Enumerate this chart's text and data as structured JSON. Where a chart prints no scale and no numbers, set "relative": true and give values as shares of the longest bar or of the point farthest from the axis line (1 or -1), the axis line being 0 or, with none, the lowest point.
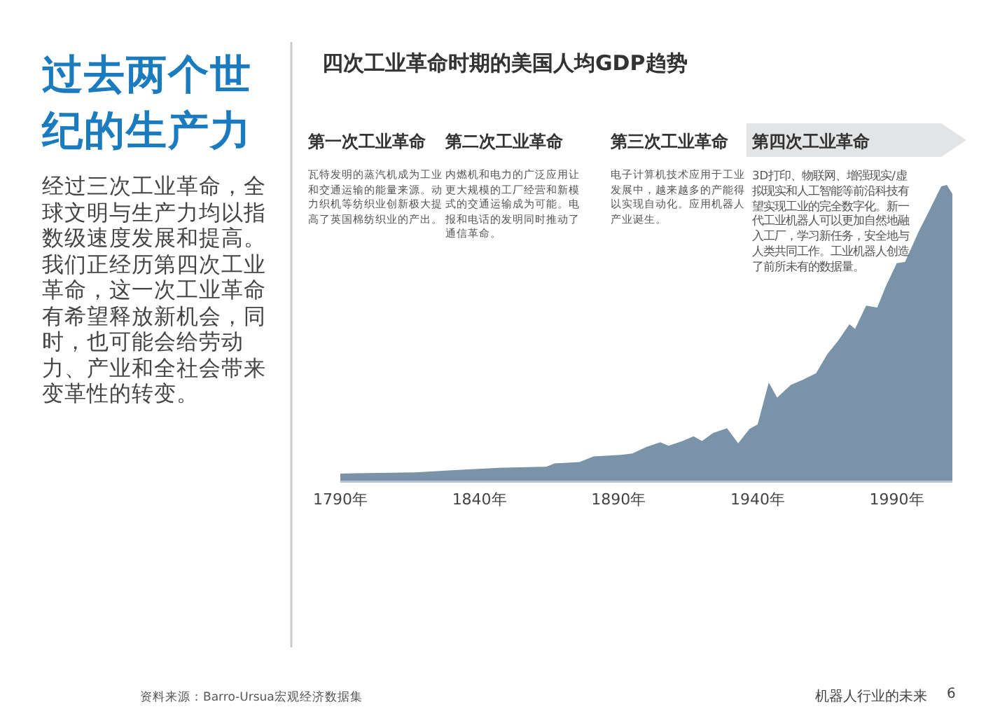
{
  "chart_data": {
    "type": "area",
    "title": "四次工业革命时期的美国人均GDP趋势",
    "relative": true,
    "color": "#7a93a8",
    "tick_labels": "x",
    "x": [
      1790,
      1817,
      1830,
      1847,
      1864,
      1867,
      1876,
      1881,
      1891,
      1895,
      1900,
      1905,
      1908,
      1913,
      1917,
      1920,
      1924,
      1929,
      1933,
      1937,
      1940,
      1944,
      1947,
      1952,
      1956,
      1961,
      1965,
      1969,
      1973,
      1975,
      1979,
      1983,
      1986,
      1990,
      1993,
      1998,
      2001,
      2006,
      2008,
      2010
    ],
    "values": [
      0.024,
      0.028,
      0.035,
      0.043,
      0.047,
      0.058,
      0.063,
      0.082,
      0.087,
      0.092,
      0.114,
      0.13,
      0.118,
      0.134,
      0.15,
      0.134,
      0.161,
      0.177,
      0.126,
      0.174,
      0.19,
      0.332,
      0.281,
      0.324,
      0.34,
      0.363,
      0.427,
      0.474,
      0.529,
      0.513,
      0.592,
      0.585,
      0.656,
      0.735,
      0.74,
      0.845,
      0.9,
      0.995,
      1,
      0.97
    ],
    "xlim": [
      1790,
      2010
    ],
    "xticks": [
      {
        "value": 1790,
        "label": "1790年"
      },
      {
        "value": 1840,
        "label": "1840年"
      },
      {
        "value": 1890,
        "label": "1890年"
      },
      {
        "value": 1940,
        "label": "1940年"
      },
      {
        "value": 1990,
        "label": "1990年"
      }
    ],
    "annotations": [
      "过去两个世纪的生产力",
      "经过三次工业革命，全球文明与生产力均以指数级速度发展和提高。我们正经历第四次工业革命，这一次工业革命有希望释放新机会，同时，也可能会给劳动力、产业和全社会带来变革性的转变。",
      "第一次工业革命",
      "瓦特发明的蒸汽机成为工业和交通运输的能量来源。动力织机等纺织业创新极大提高了英国棉纺织业的产出。",
      "第二次工业革命",
      "内燃机和电力的广泛应用让更大规模的工厂经营和新模式的交通运输成为可能。电报和电话的发明同时推动了通信革命。",
      "第三次工业革命",
      "电子计算机技术应用于工业发展中，越来越多的产能得以实现自动化。应用机器人产业诞生。",
      "第四次工业革命",
      "3D打印、物联网、增强现实/虚拟现实和人工智能等前沿科技有望实现工业的完全数字化。新一代工业机器人可以更加自然地融入工厂，学习新任务，安全地与人类共同工作。工业机器人创造了前所未有的数据量。",
      "资料来源：Barro-Ursua宏观经济数据集",
      "机器人行业的未来",
      "6"
    ]
  }
}
